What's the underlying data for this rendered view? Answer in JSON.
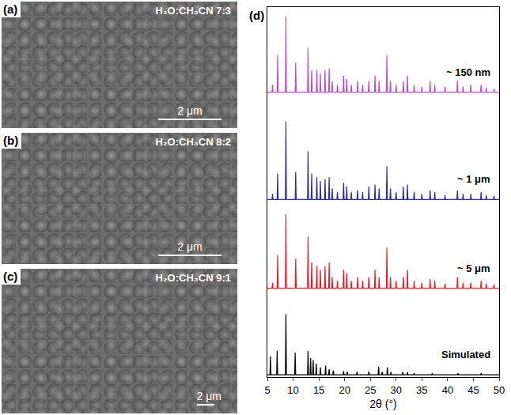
{
  "panels": [
    {
      "label": "(a)",
      "condition": "H₂O:CH₃CN 7:3",
      "scale_bar": "2 μm"
    },
    {
      "label": "(b)",
      "condition": "H₂O:CH₃CN 8:2",
      "scale_bar": "2 μm"
    },
    {
      "label": "(c)",
      "condition": "H₂O:CH₃CN 9:1",
      "scale_bar": "2 μm"
    }
  ],
  "chart_data": {
    "type": "line",
    "panel_label": "(d)",
    "x_label": "2θ (°)",
    "xlim": [
      5,
      50
    ],
    "xticks": [
      5,
      10,
      15,
      20,
      25,
      30,
      35,
      40,
      45,
      50
    ],
    "ylim": [
      0,
      100
    ],
    "tick_labels": "x",
    "grid": false,
    "series": [
      {
        "name": "~ 150 nm",
        "color": "#b94ec8",
        "x": [
          5,
          5.9,
          6.0,
          6.1,
          6.9,
          7.0,
          7.1,
          8.5,
          8.6,
          8.7,
          10.4,
          10.5,
          10.6,
          12.8,
          12.9,
          13.0,
          13.5,
          13.6,
          13.7,
          14.5,
          14.6,
          14.7,
          15.2,
          15.3,
          15.4,
          16.1,
          16.2,
          16.3,
          16.9,
          17.0,
          17.1,
          17.5,
          17.6,
          17.7,
          18.5,
          18.6,
          18.7,
          19.7,
          19.8,
          19.9,
          20.3,
          20.4,
          20.5,
          21.2,
          21.3,
          21.4,
          22.4,
          22.5,
          22.6,
          23.4,
          23.5,
          23.6,
          24.6,
          24.7,
          24.8,
          25.8,
          25.9,
          26.0,
          26.6,
          26.7,
          26.8,
          28.1,
          28.2,
          28.3,
          28.8,
          28.9,
          29.0,
          29.9,
          30.0,
          30.1,
          31.3,
          31.4,
          31.5,
          32.1,
          32.2,
          32.3,
          33.4,
          33.5,
          33.6,
          34.9,
          35.0,
          35.1,
          36.5,
          36.6,
          36.7,
          37.4,
          37.5,
          37.6,
          39.4,
          39.5,
          39.6,
          41.8,
          41.9,
          42.0,
          42.9,
          43.0,
          43.1,
          44.4,
          44.5,
          44.6,
          46.4,
          46.5,
          46.6,
          47.4,
          47.5,
          47.6,
          48.9,
          49.0,
          49.1,
          50
        ],
        "values": [
          77,
          77,
          79,
          77,
          77,
          87,
          77,
          77,
          97.5,
          77,
          77,
          85,
          77,
          77,
          89,
          77,
          77,
          83,
          77,
          77,
          83,
          77,
          77,
          82,
          77,
          77,
          83,
          77,
          77,
          83.5,
          77,
          77,
          80,
          77,
          77,
          79,
          77,
          77,
          81.5,
          77,
          77,
          80.5,
          77,
          77,
          79,
          77,
          77,
          80,
          77,
          77,
          79,
          77,
          77,
          80,
          77,
          77,
          81.5,
          77,
          77,
          80,
          77,
          77,
          87,
          77,
          77,
          80,
          77,
          77,
          79,
          77,
          77,
          80,
          77,
          77,
          81.5,
          77,
          77,
          79,
          77,
          77,
          78.5,
          77,
          77,
          80,
          77,
          77,
          79,
          77,
          77,
          78.5,
          77,
          77,
          80,
          77,
          77,
          78.5,
          77,
          77,
          79,
          77,
          77,
          79,
          77,
          77,
          78.2,
          77,
          77,
          78,
          77,
          77
        ]
      },
      {
        "name": "~ 1 μm",
        "color": "#2e3192",
        "x": [
          5,
          5.9,
          6.0,
          6.1,
          6.9,
          7.0,
          7.1,
          8.5,
          8.6,
          8.7,
          10.4,
          10.5,
          10.6,
          12.8,
          12.9,
          13.0,
          13.5,
          13.6,
          13.7,
          14.5,
          14.6,
          14.7,
          15.2,
          15.3,
          15.4,
          16.1,
          16.2,
          16.3,
          16.9,
          17.0,
          17.1,
          17.5,
          17.6,
          17.7,
          18.5,
          18.6,
          18.7,
          19.7,
          19.8,
          19.9,
          20.3,
          20.4,
          20.5,
          21.2,
          21.3,
          21.4,
          22.4,
          22.5,
          22.6,
          23.4,
          23.5,
          23.6,
          24.6,
          24.7,
          24.8,
          25.8,
          25.9,
          26.0,
          26.6,
          26.7,
          26.8,
          28.1,
          28.2,
          28.3,
          28.8,
          28.9,
          29.0,
          29.9,
          30.0,
          30.1,
          31.3,
          31.4,
          31.5,
          32.1,
          32.2,
          32.3,
          33.4,
          33.5,
          33.6,
          34.9,
          35.0,
          35.1,
          36.5,
          36.6,
          36.7,
          37.4,
          37.5,
          37.6,
          39.4,
          39.5,
          39.6,
          41.8,
          41.9,
          42.0,
          42.9,
          43.0,
          43.1,
          44.4,
          44.5,
          44.6,
          46.4,
          46.5,
          46.6,
          47.4,
          47.5,
          47.6,
          48.9,
          49.0,
          49.1,
          50
        ],
        "values": [
          48,
          48,
          49.5,
          48,
          48,
          55,
          48,
          48,
          69,
          48,
          48,
          55.5,
          48,
          48,
          61,
          48,
          48,
          55,
          48,
          48,
          54,
          48,
          48,
          53,
          48,
          48,
          53.5,
          48,
          48,
          54,
          48,
          48,
          51,
          48,
          48,
          50,
          48,
          48,
          52.5,
          48,
          48,
          51.5,
          48,
          48,
          50,
          48,
          48,
          50.5,
          48,
          48,
          50,
          48,
          48,
          51.5,
          48,
          48,
          52,
          48,
          48,
          51,
          48,
          48,
          57,
          48,
          48,
          51,
          48,
          48,
          50,
          48,
          48,
          51.5,
          48,
          48,
          52,
          48,
          48,
          50,
          48,
          48,
          49.5,
          48,
          48,
          50.5,
          48,
          48,
          50,
          48,
          48,
          49.2,
          48,
          48,
          50.5,
          48,
          48,
          49.5,
          48,
          48,
          49.5,
          48,
          48,
          50,
          48,
          48,
          49.2,
          48,
          48,
          49,
          48,
          48
        ]
      },
      {
        "name": "~ 5 μm",
        "color": "#ed1c24",
        "x": [
          5,
          5.9,
          6.0,
          6.1,
          6.9,
          7.0,
          7.1,
          8.5,
          8.6,
          8.7,
          10.4,
          10.5,
          10.6,
          12.8,
          12.9,
          13.0,
          13.5,
          13.6,
          13.7,
          14.5,
          14.6,
          14.7,
          15.2,
          15.3,
          15.4,
          16.1,
          16.2,
          16.3,
          16.9,
          17.0,
          17.1,
          17.5,
          17.6,
          17.7,
          18.5,
          18.6,
          18.7,
          19.7,
          19.8,
          19.9,
          20.3,
          20.4,
          20.5,
          21.2,
          21.3,
          21.4,
          22.4,
          22.5,
          22.6,
          23.4,
          23.5,
          23.6,
          24.6,
          24.7,
          24.8,
          25.8,
          25.9,
          26.0,
          26.6,
          26.7,
          26.8,
          28.1,
          28.2,
          28.3,
          28.8,
          28.9,
          29.0,
          29.9,
          30.0,
          30.1,
          31.3,
          31.4,
          31.5,
          32.1,
          32.2,
          32.3,
          33.4,
          33.5,
          33.6,
          34.9,
          35.0,
          35.1,
          36.5,
          36.6,
          36.7,
          37.4,
          37.5,
          37.6,
          39.4,
          39.5,
          39.6,
          41.8,
          41.9,
          42.0,
          42.9,
          43.0,
          43.1,
          44.4,
          44.5,
          44.6,
          46.4,
          46.5,
          46.6,
          47.4,
          47.5,
          47.6,
          48.9,
          49.0,
          49.1,
          50
        ],
        "values": [
          24,
          24,
          25.5,
          24,
          24,
          33,
          24,
          24,
          44,
          24,
          24,
          32,
          24,
          24,
          38,
          24,
          24,
          31,
          24,
          24,
          30,
          24,
          24,
          29,
          24,
          24,
          30,
          24,
          24,
          31,
          24,
          24,
          27,
          24,
          24,
          26,
          24,
          24,
          29,
          24,
          24,
          28,
          24,
          24,
          26,
          24,
          24,
          27,
          24,
          24,
          26,
          24,
          24,
          27,
          24,
          24,
          29,
          24,
          24,
          27,
          24,
          24,
          35,
          24,
          24,
          27,
          24,
          24,
          26,
          24,
          24,
          27,
          24,
          24,
          29,
          24,
          24,
          26,
          24,
          24,
          25.5,
          24,
          24,
          26.5,
          24,
          24,
          26,
          24,
          24,
          25.2,
          24,
          24,
          27,
          24,
          24,
          25.5,
          24,
          24,
          25.5,
          24,
          24,
          26,
          24,
          24,
          25.2,
          24,
          24,
          25,
          24,
          24
        ]
      },
      {
        "name": "Simulated",
        "color": "#000000",
        "x": [
          5,
          5.5,
          5.6,
          5.7,
          6.8,
          6.9,
          7.0,
          8.5,
          8.6,
          8.7,
          10.3,
          10.4,
          10.5,
          12.8,
          12.9,
          13.0,
          13.3,
          13.4,
          13.5,
          13.8,
          13.9,
          14.0,
          14.4,
          14.5,
          14.6,
          15.2,
          15.3,
          15.4,
          16.2,
          16.3,
          16.4,
          16.9,
          17.0,
          17.1,
          17.7,
          17.8,
          17.9,
          19.7,
          19.8,
          19.9,
          20.4,
          20.5,
          20.6,
          22.3,
          22.4,
          22.5,
          24.6,
          24.7,
          24.8,
          26.5,
          26.6,
          26.7,
          27.2,
          27.3,
          27.4,
          28.2,
          28.3,
          28.4,
          28.9,
          29.0,
          29.1,
          31.2,
          31.3,
          31.4,
          32.1,
          32.2,
          32.3,
          33.4,
          33.5,
          33.6,
          36.9,
          37.0,
          37.1,
          41.9,
          42.0,
          42.1,
          46.4,
          46.5,
          46.6,
          50
        ],
        "values": [
          0.6,
          0.6,
          5.6,
          0.6,
          0.6,
          7.1,
          0.6,
          0.6,
          17.0,
          0.6,
          0.6,
          6.6,
          0.6,
          0.6,
          7.1,
          0.6,
          0.6,
          5.1,
          0.6,
          0.6,
          4.6,
          0.6,
          0.6,
          3.6,
          0.6,
          0.6,
          2.6,
          0.6,
          0.6,
          3.1,
          0.6,
          0.6,
          2.1,
          0.6,
          0.6,
          1.8,
          0.6,
          0.6,
          1.6,
          0.6,
          0.6,
          1.4,
          0.6,
          0.6,
          1.4,
          0.6,
          0.6,
          1.5,
          0.6,
          0.6,
          2.8,
          0.6,
          0.6,
          1.4,
          0.6,
          0.6,
          2.6,
          0.6,
          0.6,
          1.4,
          0.6,
          0.6,
          1.4,
          0.6,
          0.6,
          1.3,
          0.6,
          0.6,
          1.1,
          0.6,
          0.6,
          1.0,
          0.6,
          0.6,
          1.0,
          0.6,
          0.6,
          1.0,
          0.6,
          0.6
        ]
      }
    ]
  }
}
